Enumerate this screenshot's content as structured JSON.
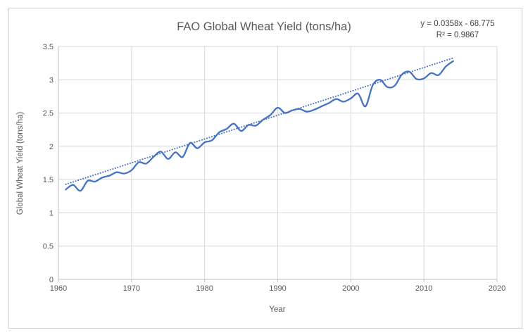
{
  "title": "FAO Global Wheat Yield (tons/ha)",
  "annotation": {
    "equation": "y = 0.0358x - 68.775",
    "r_squared": "R² = 0.9867"
  },
  "colors": {
    "series_line": "#4472C4",
    "trendline": "#4472C4",
    "gridline": "#D9D9D9",
    "axis_line": "#BFBFBF",
    "axis_text": "#595959",
    "title_text": "#595959",
    "annotation_text": "#3F3F3F",
    "chart_border": "#D0CECE",
    "background": "#FFFFFF"
  },
  "chart_data": {
    "type": "line",
    "title": "FAO Global Wheat Yield (tons/ha)",
    "xlabel": "Year",
    "ylabel": "Global Wheat Yield (tons/ha)",
    "xlim": [
      1960,
      2020
    ],
    "ylim": [
      0,
      3.5
    ],
    "x_ticks": [
      1960,
      1970,
      1980,
      1990,
      2000,
      2010,
      2020
    ],
    "y_ticks": [
      0,
      0.5,
      1,
      1.5,
      2,
      2.5,
      3,
      3.5
    ],
    "grid": true,
    "legend": "none",
    "line_style": "smooth",
    "series": [
      {
        "name": "Global wheat yield",
        "x": [
          1961,
          1962,
          1963,
          1964,
          1965,
          1966,
          1967,
          1968,
          1969,
          1970,
          1971,
          1972,
          1973,
          1974,
          1975,
          1976,
          1977,
          1978,
          1979,
          1980,
          1981,
          1982,
          1983,
          1984,
          1985,
          1986,
          1987,
          1988,
          1989,
          1990,
          1991,
          1992,
          1993,
          1994,
          1995,
          1996,
          1997,
          1998,
          1999,
          2000,
          2001,
          2002,
          2003,
          2004,
          2005,
          2006,
          2007,
          2008,
          2009,
          2010,
          2011,
          2012,
          2013,
          2014
        ],
        "values": [
          1.35,
          1.42,
          1.33,
          1.48,
          1.47,
          1.53,
          1.56,
          1.61,
          1.59,
          1.64,
          1.76,
          1.74,
          1.84,
          1.92,
          1.81,
          1.91,
          1.84,
          2.05,
          1.97,
          2.06,
          2.09,
          2.21,
          2.26,
          2.34,
          2.23,
          2.32,
          2.31,
          2.4,
          2.47,
          2.58,
          2.5,
          2.54,
          2.56,
          2.52,
          2.55,
          2.6,
          2.65,
          2.71,
          2.67,
          2.72,
          2.79,
          2.6,
          2.92,
          3.0,
          2.89,
          2.91,
          3.08,
          3.12,
          3.01,
          3.02,
          3.1,
          3.07,
          3.2,
          3.28
        ]
      }
    ],
    "trendline": {
      "style": "dotted",
      "slope": 0.0358,
      "intercept": -68.775,
      "x_start": 1961,
      "x_end": 2014,
      "equation": "y = 0.0358x - 68.775",
      "r2": "R² = 0.9867"
    }
  }
}
